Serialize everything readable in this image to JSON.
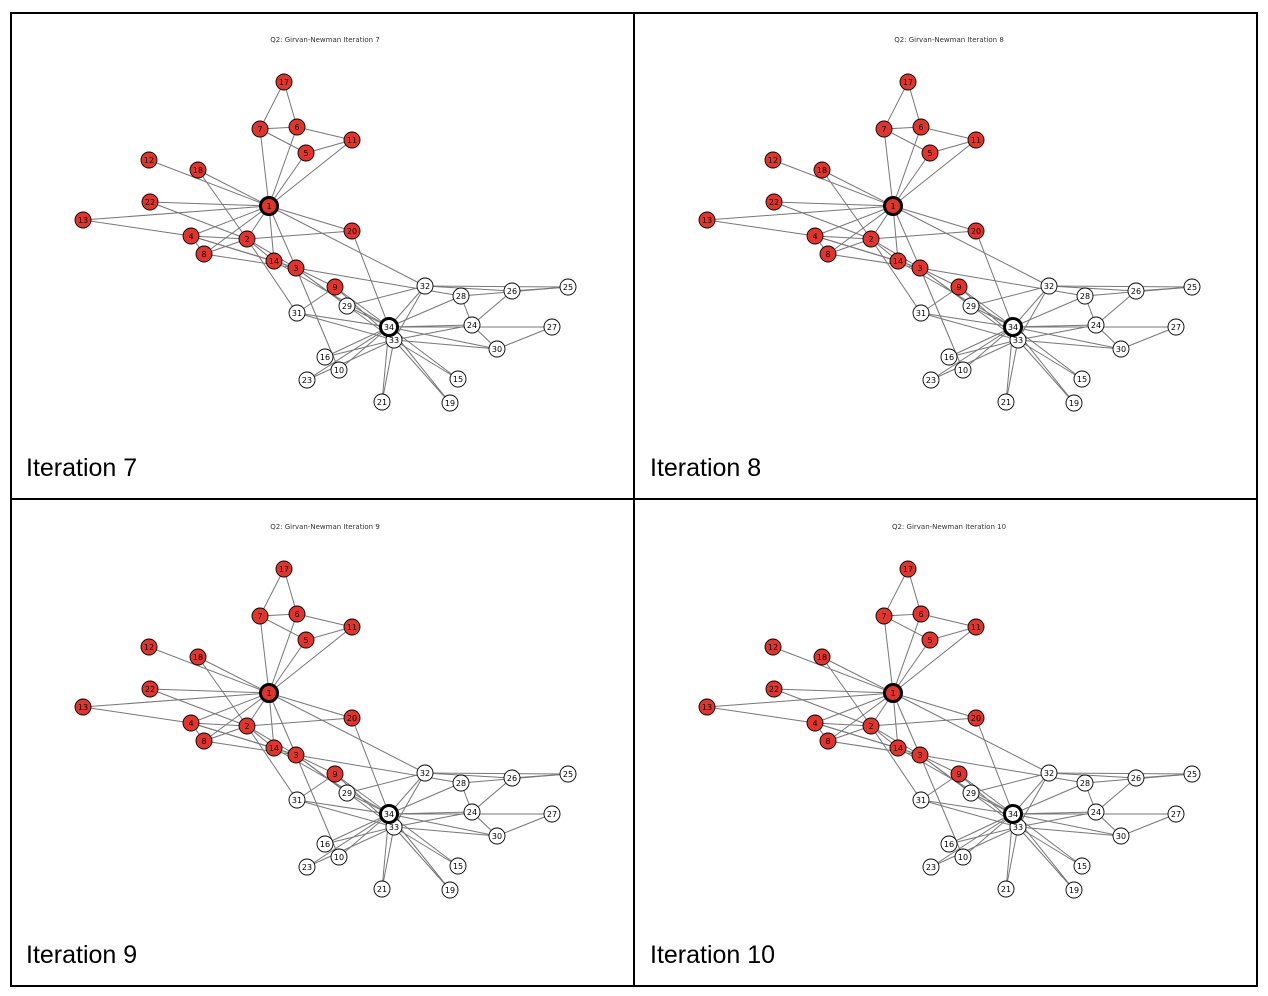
{
  "panels": [
    {
      "title": "Q2: Girvan-Newman Iteration 7",
      "caption": "Iteration 7"
    },
    {
      "title": "Q2: Girvan-Newman Iteration 8",
      "caption": "Iteration 8"
    },
    {
      "title": "Q2: Girvan-Newman Iteration 9",
      "caption": "Iteration 9"
    },
    {
      "title": "Q2: Girvan-Newman Iteration 10",
      "caption": "Iteration 10"
    }
  ],
  "graph": {
    "nodes": [
      {
        "id": "1",
        "community": "red",
        "hub": true
      },
      {
        "id": "2",
        "community": "red"
      },
      {
        "id": "3",
        "community": "red"
      },
      {
        "id": "4",
        "community": "red"
      },
      {
        "id": "5",
        "community": "red"
      },
      {
        "id": "6",
        "community": "red"
      },
      {
        "id": "7",
        "community": "red"
      },
      {
        "id": "8",
        "community": "red"
      },
      {
        "id": "9",
        "community": "red"
      },
      {
        "id": "10",
        "community": "white"
      },
      {
        "id": "11",
        "community": "red"
      },
      {
        "id": "12",
        "community": "red"
      },
      {
        "id": "13",
        "community": "red"
      },
      {
        "id": "14",
        "community": "red"
      },
      {
        "id": "15",
        "community": "white"
      },
      {
        "id": "16",
        "community": "white"
      },
      {
        "id": "17",
        "community": "red"
      },
      {
        "id": "18",
        "community": "red"
      },
      {
        "id": "19",
        "community": "white"
      },
      {
        "id": "20",
        "community": "red"
      },
      {
        "id": "21",
        "community": "white"
      },
      {
        "id": "22",
        "community": "red"
      },
      {
        "id": "23",
        "community": "white"
      },
      {
        "id": "24",
        "community": "white"
      },
      {
        "id": "25",
        "community": "white"
      },
      {
        "id": "26",
        "community": "white"
      },
      {
        "id": "27",
        "community": "white"
      },
      {
        "id": "28",
        "community": "white"
      },
      {
        "id": "29",
        "community": "white"
      },
      {
        "id": "30",
        "community": "white"
      },
      {
        "id": "31",
        "community": "white"
      },
      {
        "id": "32",
        "community": "white"
      },
      {
        "id": "33",
        "community": "white"
      },
      {
        "id": "34",
        "community": "white",
        "hub": true
      }
    ],
    "edges": [
      [
        "1",
        "2"
      ],
      [
        "1",
        "3"
      ],
      [
        "1",
        "4"
      ],
      [
        "1",
        "5"
      ],
      [
        "1",
        "6"
      ],
      [
        "1",
        "7"
      ],
      [
        "1",
        "8"
      ],
      [
        "1",
        "11"
      ],
      [
        "1",
        "12"
      ],
      [
        "1",
        "13"
      ],
      [
        "1",
        "14"
      ],
      [
        "1",
        "18"
      ],
      [
        "1",
        "20"
      ],
      [
        "1",
        "22"
      ],
      [
        "1",
        "32"
      ],
      [
        "2",
        "3"
      ],
      [
        "2",
        "4"
      ],
      [
        "2",
        "8"
      ],
      [
        "2",
        "14"
      ],
      [
        "2",
        "18"
      ],
      [
        "2",
        "20"
      ],
      [
        "2",
        "22"
      ],
      [
        "2",
        "31"
      ],
      [
        "3",
        "4"
      ],
      [
        "3",
        "8"
      ],
      [
        "3",
        "9"
      ],
      [
        "3",
        "10"
      ],
      [
        "3",
        "14"
      ],
      [
        "3",
        "28"
      ],
      [
        "3",
        "29"
      ],
      [
        "3",
        "33"
      ],
      [
        "4",
        "8"
      ],
      [
        "4",
        "13"
      ],
      [
        "4",
        "14"
      ],
      [
        "5",
        "7"
      ],
      [
        "5",
        "11"
      ],
      [
        "6",
        "7"
      ],
      [
        "6",
        "11"
      ],
      [
        "6",
        "17"
      ],
      [
        "7",
        "17"
      ],
      [
        "9",
        "31"
      ],
      [
        "9",
        "33"
      ],
      [
        "9",
        "34"
      ],
      [
        "10",
        "34"
      ],
      [
        "14",
        "34"
      ],
      [
        "15",
        "33"
      ],
      [
        "15",
        "34"
      ],
      [
        "16",
        "33"
      ],
      [
        "16",
        "34"
      ],
      [
        "19",
        "33"
      ],
      [
        "19",
        "34"
      ],
      [
        "20",
        "34"
      ],
      [
        "21",
        "33"
      ],
      [
        "21",
        "34"
      ],
      [
        "23",
        "33"
      ],
      [
        "23",
        "34"
      ],
      [
        "24",
        "26"
      ],
      [
        "24",
        "28"
      ],
      [
        "24",
        "30"
      ],
      [
        "24",
        "33"
      ],
      [
        "24",
        "34"
      ],
      [
        "25",
        "26"
      ],
      [
        "25",
        "28"
      ],
      [
        "25",
        "32"
      ],
      [
        "26",
        "32"
      ],
      [
        "27",
        "30"
      ],
      [
        "27",
        "34"
      ],
      [
        "28",
        "34"
      ],
      [
        "29",
        "32"
      ],
      [
        "29",
        "34"
      ],
      [
        "30",
        "33"
      ],
      [
        "30",
        "34"
      ],
      [
        "31",
        "33"
      ],
      [
        "31",
        "34"
      ],
      [
        "32",
        "33"
      ],
      [
        "32",
        "34"
      ],
      [
        "33",
        "34"
      ]
    ]
  },
  "colors": {
    "red": "#e2342b",
    "white": "#ffffff",
    "stroke": "#000000",
    "edge": "#777777"
  }
}
